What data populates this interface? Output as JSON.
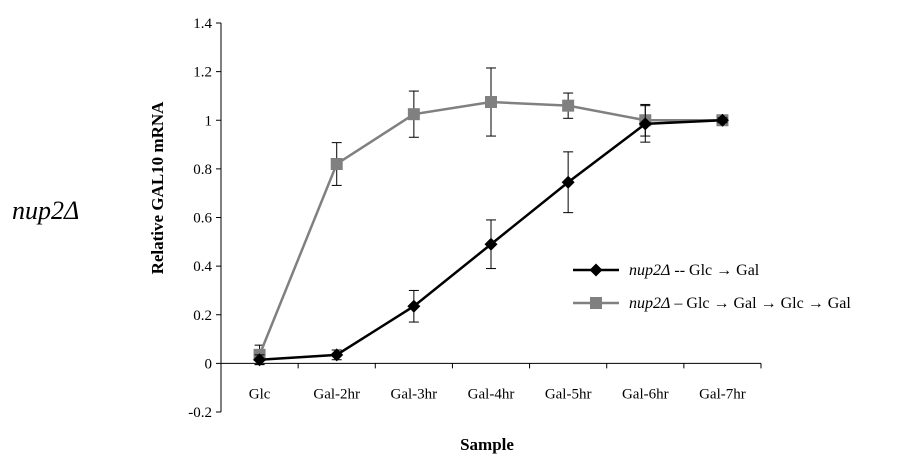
{
  "side_label": "nup2Δ",
  "chart_data": {
    "type": "line",
    "title": "",
    "xlabel": "Sample",
    "ylabel": "Relative GAL10 mRNA",
    "categories": [
      "Glc",
      "Gal-2hr",
      "Gal-3hr",
      "Gal-4hr",
      "Gal-5hr",
      "Gal-6hr",
      "Gal-7hr"
    ],
    "ylim": [
      -0.2,
      1.4
    ],
    "yticks": [
      "-0.2",
      "0",
      "0.2",
      "0.4",
      "0.6",
      "0.8",
      "1",
      "1.2",
      "1.4"
    ],
    "grid": false,
    "legend_position": "right",
    "series": [
      {
        "name_italic": "nup2Δ",
        "name_rest": " -- Glc → Gal",
        "color": "#000000",
        "marker": "diamond",
        "values": [
          0.015,
          0.035,
          0.235,
          0.49,
          0.745,
          0.985,
          1.0
        ],
        "errors": [
          0.02,
          0.02,
          0.065,
          0.1,
          0.125,
          0.075,
          0.01
        ]
      },
      {
        "name_italic": "nup2Δ",
        "name_rest": " – Glc → Gal → Glc → Gal",
        "color": "#808080",
        "marker": "square",
        "values": [
          0.035,
          0.82,
          1.025,
          1.075,
          1.06,
          1.0,
          1.0
        ],
        "errors": [
          0.04,
          0.088,
          0.095,
          0.14,
          0.052,
          0.065,
          0.01
        ]
      }
    ]
  }
}
